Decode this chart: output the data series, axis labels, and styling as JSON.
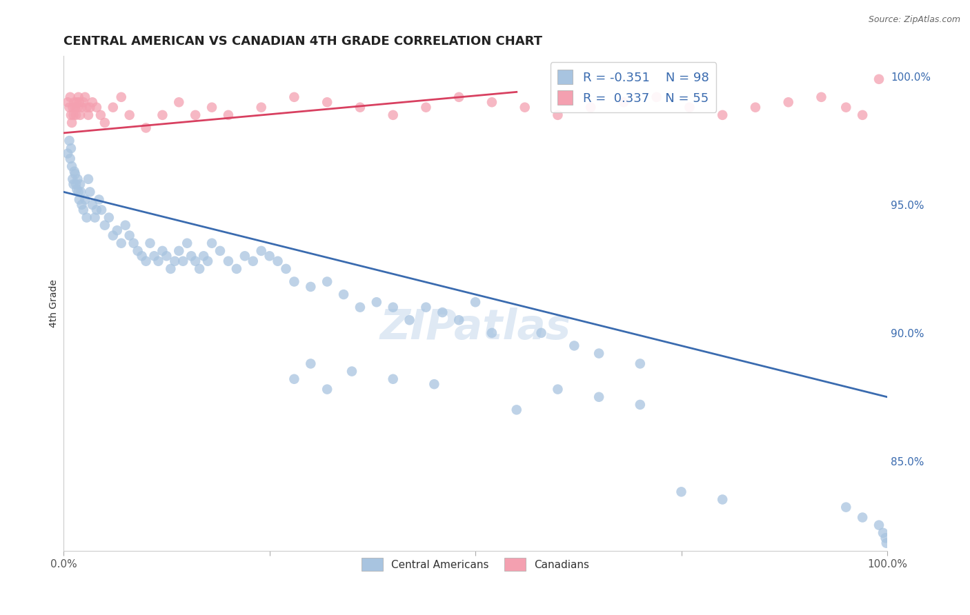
{
  "title": "CENTRAL AMERICAN VS CANADIAN 4TH GRADE CORRELATION CHART",
  "source_text": "Source: ZipAtlas.com",
  "ylabel": "4th Grade",
  "xlim": [
    0.0,
    1.0
  ],
  "ylim": [
    0.815,
    1.008
  ],
  "yticks": [
    0.85,
    0.9,
    0.95,
    1.0
  ],
  "ytick_labels": [
    "85.0%",
    "90.0%",
    "95.0%",
    "100.0%"
  ],
  "xtick_labels": [
    "0.0%",
    "100.0%"
  ],
  "blue_R": -0.351,
  "blue_N": 98,
  "pink_R": 0.337,
  "pink_N": 55,
  "blue_color": "#a8c4e0",
  "pink_color": "#f4a0b0",
  "blue_line_color": "#3a6baf",
  "pink_line_color": "#d84060",
  "legend_blue_label": "Central Americans",
  "legend_pink_label": "Canadians",
  "background_color": "#ffffff",
  "grid_color": "#cccccc",
  "watermark_text": "ZIPatlas",
  "blue_line_x0": 0.0,
  "blue_line_x1": 1.0,
  "blue_line_y0": 0.955,
  "blue_line_y1": 0.875,
  "pink_line_x0": 0.0,
  "pink_line_x1": 0.55,
  "pink_line_y0": 0.978,
  "pink_line_y1": 0.994,
  "blue_x": [
    0.005,
    0.007,
    0.008,
    0.009,
    0.01,
    0.011,
    0.012,
    0.013,
    0.014,
    0.015,
    0.016,
    0.017,
    0.018,
    0.019,
    0.02,
    0.021,
    0.022,
    0.024,
    0.026,
    0.028,
    0.03,
    0.032,
    0.035,
    0.038,
    0.04,
    0.043,
    0.046,
    0.05,
    0.055,
    0.06,
    0.065,
    0.07,
    0.075,
    0.08,
    0.085,
    0.09,
    0.095,
    0.1,
    0.105,
    0.11,
    0.115,
    0.12,
    0.125,
    0.13,
    0.135,
    0.14,
    0.145,
    0.15,
    0.155,
    0.16,
    0.165,
    0.17,
    0.175,
    0.18,
    0.19,
    0.2,
    0.21,
    0.22,
    0.23,
    0.24,
    0.25,
    0.26,
    0.27,
    0.28,
    0.3,
    0.32,
    0.34,
    0.36,
    0.38,
    0.4,
    0.42,
    0.44,
    0.46,
    0.48,
    0.5,
    0.52,
    0.58,
    0.62,
    0.65,
    0.7,
    0.3,
    0.35,
    0.28,
    0.32,
    0.4,
    0.45,
    0.55,
    0.6,
    0.65,
    0.7,
    0.75,
    0.8,
    0.95,
    0.97,
    0.99,
    0.995,
    0.998,
    0.999
  ],
  "blue_y": [
    0.97,
    0.975,
    0.968,
    0.972,
    0.965,
    0.96,
    0.958,
    0.963,
    0.962,
    0.958,
    0.956,
    0.96,
    0.955,
    0.952,
    0.958,
    0.955,
    0.95,
    0.948,
    0.952,
    0.945,
    0.96,
    0.955,
    0.95,
    0.945,
    0.948,
    0.952,
    0.948,
    0.942,
    0.945,
    0.938,
    0.94,
    0.935,
    0.942,
    0.938,
    0.935,
    0.932,
    0.93,
    0.928,
    0.935,
    0.93,
    0.928,
    0.932,
    0.93,
    0.925,
    0.928,
    0.932,
    0.928,
    0.935,
    0.93,
    0.928,
    0.925,
    0.93,
    0.928,
    0.935,
    0.932,
    0.928,
    0.925,
    0.93,
    0.928,
    0.932,
    0.93,
    0.928,
    0.925,
    0.92,
    0.918,
    0.92,
    0.915,
    0.91,
    0.912,
    0.91,
    0.905,
    0.91,
    0.908,
    0.905,
    0.912,
    0.9,
    0.9,
    0.895,
    0.892,
    0.888,
    0.888,
    0.885,
    0.882,
    0.878,
    0.882,
    0.88,
    0.87,
    0.878,
    0.875,
    0.872,
    0.838,
    0.835,
    0.832,
    0.828,
    0.825,
    0.822,
    0.82,
    0.818
  ],
  "pink_x": [
    0.005,
    0.007,
    0.008,
    0.009,
    0.01,
    0.011,
    0.012,
    0.013,
    0.014,
    0.015,
    0.016,
    0.017,
    0.018,
    0.019,
    0.02,
    0.022,
    0.024,
    0.026,
    0.028,
    0.03,
    0.032,
    0.035,
    0.04,
    0.045,
    0.05,
    0.06,
    0.07,
    0.08,
    0.1,
    0.12,
    0.14,
    0.16,
    0.18,
    0.2,
    0.24,
    0.28,
    0.32,
    0.36,
    0.4,
    0.44,
    0.48,
    0.52,
    0.56,
    0.6,
    0.64,
    0.68,
    0.72,
    0.76,
    0.8,
    0.84,
    0.88,
    0.92,
    0.95,
    0.97,
    0.99
  ],
  "pink_y": [
    0.99,
    0.988,
    0.992,
    0.985,
    0.982,
    0.988,
    0.985,
    0.99,
    0.988,
    0.985,
    0.99,
    0.988,
    0.992,
    0.99,
    0.985,
    0.988,
    0.99,
    0.992,
    0.988,
    0.985,
    0.988,
    0.99,
    0.988,
    0.985,
    0.982,
    0.988,
    0.992,
    0.985,
    0.98,
    0.985,
    0.99,
    0.985,
    0.988,
    0.985,
    0.988,
    0.992,
    0.99,
    0.988,
    0.985,
    0.988,
    0.992,
    0.99,
    0.988,
    0.985,
    0.988,
    0.99,
    0.992,
    0.988,
    0.985,
    0.988,
    0.99,
    0.992,
    0.988,
    0.985,
    0.999
  ]
}
